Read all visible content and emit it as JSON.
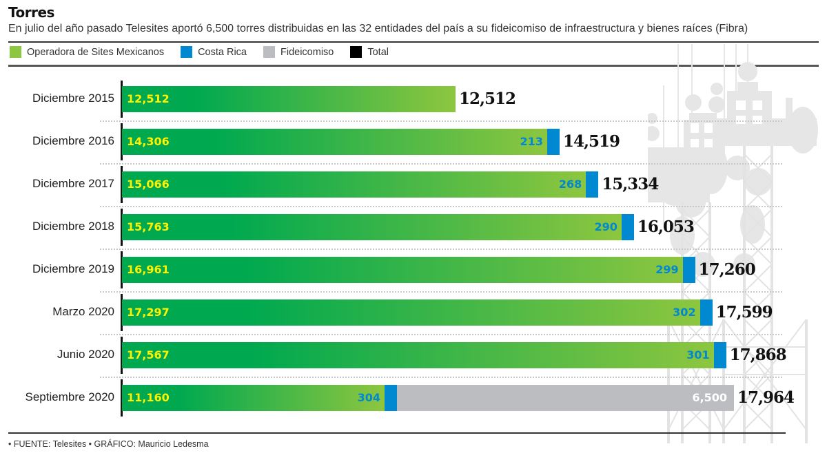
{
  "header": {
    "title": "Torres",
    "subtitle": "En julio del año pasado Telesites aportó 6,500 torres distribuidas en las 32 entidades del país a su fideicomiso de infraestructura y bienes raíces (Fibra)"
  },
  "legend": [
    {
      "label": "Operadora de Sites Mexicanos",
      "color": "#8dc63f"
    },
    {
      "label": "Costa Rica",
      "color": "#0088d1"
    },
    {
      "label": "Fideicomiso",
      "color": "#bcbdc0"
    },
    {
      "label": "Total",
      "color": "#000000"
    }
  ],
  "colors": {
    "green_start": "#00a94f",
    "green_end": "#8dc63f",
    "costa_rica": "#0088d1",
    "fideicomiso": "#bcbdc0",
    "label_yellow": "#fff200",
    "label_blue": "#0088d1",
    "label_fide": "#ffffff"
  },
  "chart_data": {
    "type": "bar",
    "orientation": "horizontal",
    "stacked": true,
    "title": "Torres",
    "subtitle": "En julio del año pasado Telesites aportó 6,500 torres distribuidas en las 32 entidades del país a su fideicomiso de infraestructura y bienes raíces (Fibra)",
    "xlabel": "",
    "ylabel": "",
    "legend_position": "top-left",
    "grid": false,
    "categories": [
      "Diciembre 2015",
      "Diciembre 2016",
      "Diciembre 2017",
      "Diciembre 2018",
      "Diciembre 2019",
      "Marzo 2020",
      "Junio 2020",
      "Septiembre 2020"
    ],
    "series": [
      {
        "name": "Operadora de Sites Mexicanos",
        "values": [
          12512,
          14306,
          15066,
          15763,
          16961,
          17297,
          17567,
          11160
        ],
        "labels": [
          "12,512",
          "14,306",
          "15,066",
          "15,763",
          "16,961",
          "17,297",
          "17,567",
          "11,160"
        ]
      },
      {
        "name": "Costa Rica",
        "values": [
          0,
          213,
          268,
          290,
          299,
          302,
          301,
          304
        ],
        "labels": [
          "",
          "213",
          "268",
          "290",
          "299",
          "302",
          "301",
          "304"
        ]
      },
      {
        "name": "Fideicomiso",
        "values": [
          0,
          0,
          0,
          0,
          0,
          0,
          0,
          6500
        ],
        "labels": [
          "",
          "",
          "",
          "",
          "",
          "",
          "",
          "6,500"
        ]
      }
    ],
    "totals": {
      "name": "Total",
      "values": [
        12512,
        14519,
        15334,
        16053,
        17260,
        17599,
        17868,
        17964
      ],
      "labels": [
        "12,512",
        "14,519",
        "15,334",
        "16,053",
        "17,260",
        "17,599",
        "17,868",
        "17,964"
      ]
    }
  },
  "footer": "• FUENTE: Telesites • GRÁFICO: Mauricio Ledesma"
}
